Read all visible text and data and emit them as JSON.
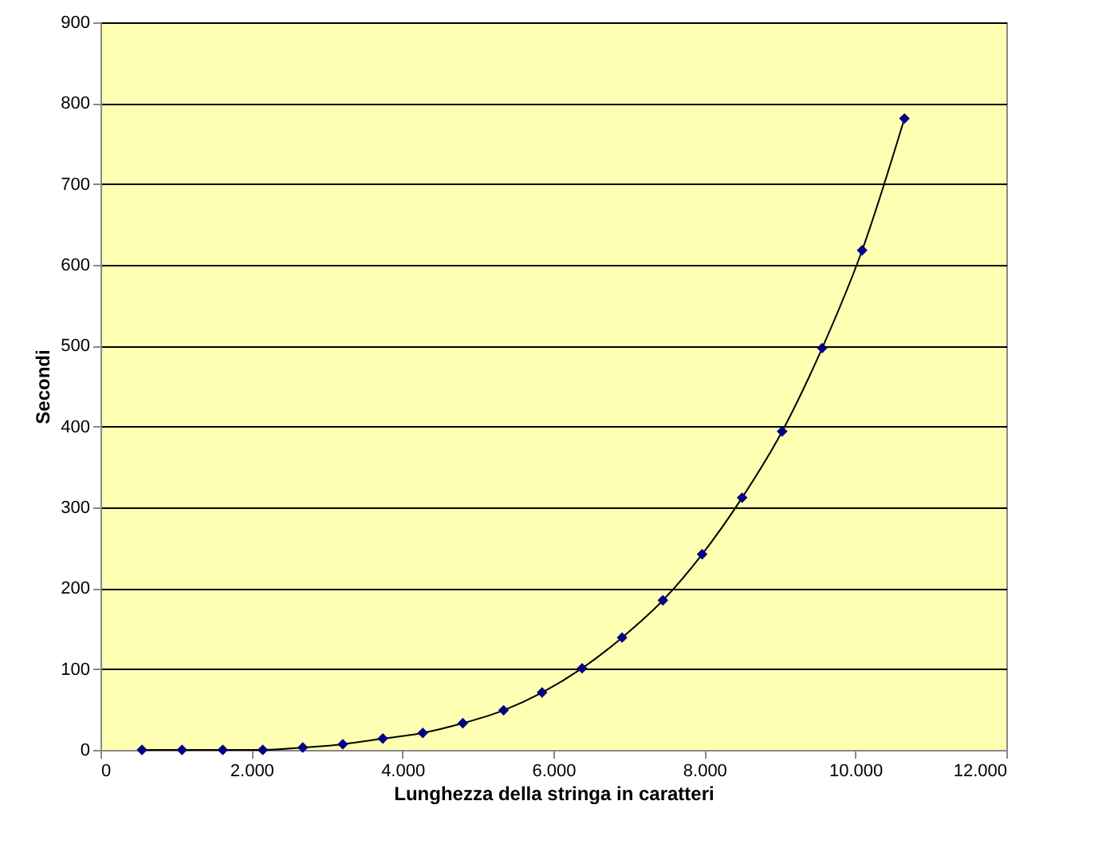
{
  "chart_data": {
    "type": "line",
    "xlabel": "Lunghezza della stringa in caratteri",
    "ylabel": "Secondi",
    "x": [
      550,
      1080,
      1620,
      2150,
      2680,
      3210,
      3740,
      4270,
      4800,
      5340,
      5850,
      6380,
      6910,
      7450,
      7970,
      8500,
      9030,
      9560,
      10090,
      10650
    ],
    "series": [
      {
        "color": "#000080",
        "values": [
          0,
          0,
          0,
          0,
          3,
          7,
          14,
          21,
          33,
          49,
          71,
          101,
          139,
          185,
          242,
          312,
          394,
          497,
          618,
          781
        ]
      }
    ],
    "xlim": [
      0,
      12000
    ],
    "xticks": [
      0,
      {
        "value": 2000,
        "label": "2.000"
      },
      {
        "value": 4000,
        "label": "4.000"
      },
      {
        "value": 6000,
        "label": "6.000"
      },
      {
        "value": 8000,
        "label": "8.000"
      },
      {
        "value": 10000,
        "label": "10.000"
      },
      {
        "value": 12000,
        "label": "12.000"
      }
    ],
    "ylim": [
      0,
      900
    ],
    "yticks": [
      0,
      100,
      200,
      300,
      400,
      500,
      600,
      700,
      800,
      900
    ],
    "grid": "y",
    "marker": "diamond",
    "line_style": "solid"
  }
}
